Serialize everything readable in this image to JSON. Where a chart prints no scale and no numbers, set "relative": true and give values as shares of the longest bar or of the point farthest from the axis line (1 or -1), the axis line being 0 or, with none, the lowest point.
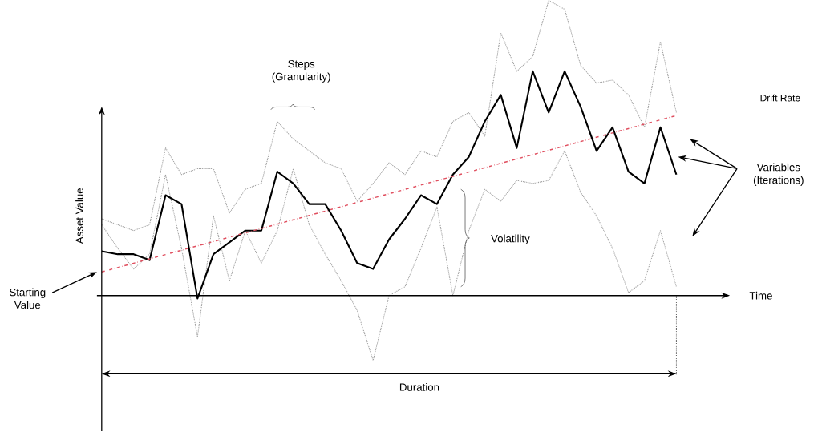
{
  "chart_data": {
    "type": "line",
    "relative": true,
    "ylabel": "Asset Value",
    "categories": [
      null,
      null,
      null,
      null,
      null,
      null,
      null,
      null,
      null,
      null,
      null,
      null,
      null,
      null,
      null,
      null,
      null,
      null,
      null,
      null,
      null,
      null,
      null,
      null,
      null,
      null,
      null,
      null,
      null,
      null,
      null,
      null,
      null,
      null,
      null,
      null,
      null
    ],
    "series": [
      {
        "color": "#a0a0a0",
        "line_style": "dotted",
        "values": [
          0.26,
          0.24,
          0.22,
          0.24,
          0.5,
          0.41,
          0.43,
          0.43,
          0.28,
          0.36,
          0.38,
          0.59,
          0.53,
          0.49,
          0.45,
          0.43,
          0.32,
          0.38,
          0.45,
          0.41,
          0.49,
          0.47,
          0.59,
          0.62,
          0.54,
          0.89,
          0.76,
          0.81,
          1,
          0.97,
          0.78,
          0.72,
          0.73,
          0.68,
          0.57,
          0.86,
          0.62
        ]
      },
      {
        "color": "#a0a0a0",
        "line_style": "dotted",
        "values": [
          0.24,
          0.16,
          0.09,
          0.14,
          0.41,
          0.16,
          -0.14,
          0.27,
          0.05,
          0.22,
          0.11,
          0.22,
          0.43,
          0.24,
          0.14,
          0.05,
          -0.05,
          -0.22,
          0,
          0.03,
          0.16,
          0.3,
          0,
          0.22,
          0.36,
          0.32,
          0.39,
          0.38,
          0.39,
          0.49,
          0.35,
          0.27,
          0.16,
          0.01,
          0.05,
          0.22,
          0.03
        ]
      },
      {
        "color": "#000000",
        "line_style": "solid",
        "values": [
          0.15,
          0.14,
          0.14,
          0.12,
          0.34,
          0.31,
          -0.01,
          0.14,
          0.18,
          0.22,
          0.22,
          0.42,
          0.38,
          0.31,
          0.31,
          0.22,
          0.11,
          0.09,
          0.19,
          0.26,
          0.34,
          0.31,
          0.41,
          0.47,
          0.59,
          0.68,
          0.5,
          0.76,
          0.62,
          0.76,
          0.64,
          0.49,
          0.57,
          0.42,
          0.38,
          0.57,
          0.41
        ]
      },
      {
        "name": "Drift Rate",
        "color": "#e05060",
        "line_style": "dashed",
        "values": [
          0.08,
          null,
          null,
          null,
          null,
          null,
          null,
          null,
          null,
          null,
          null,
          null,
          null,
          null,
          null,
          null,
          null,
          null,
          null,
          null,
          null,
          null,
          null,
          null,
          null,
          null,
          null,
          null,
          null,
          null,
          null,
          null,
          null,
          null,
          null,
          null,
          0.61
        ]
      }
    ],
    "annotations": [
      "Steps (Granularity)",
      "Volatility",
      "Starting Value",
      "Variables (Iterations)",
      "Duration",
      "Time"
    ]
  }
}
